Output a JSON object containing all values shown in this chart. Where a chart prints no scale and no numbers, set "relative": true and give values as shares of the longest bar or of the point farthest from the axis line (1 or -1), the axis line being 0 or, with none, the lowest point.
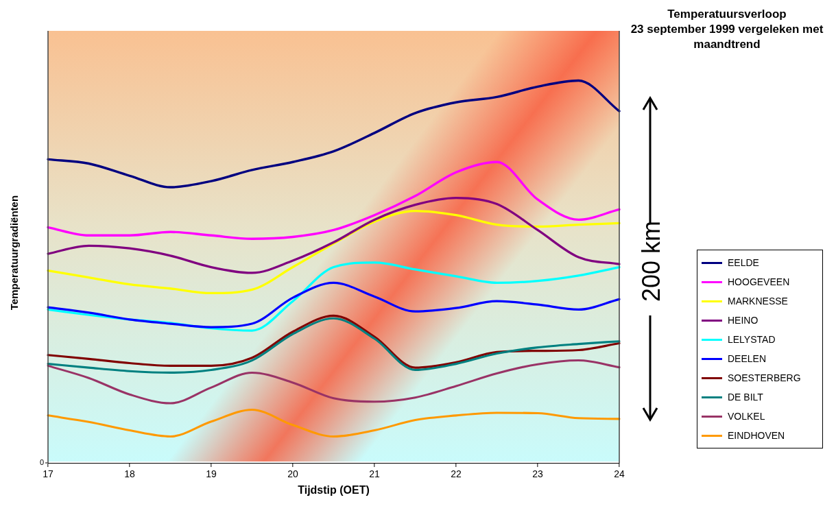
{
  "chart_data": {
    "type": "line",
    "title": "Temperatuursverloop",
    "subtitle": "23 september 1999 vergeleken met maandtrend",
    "xlabel": "Tijdstip (OET)",
    "ylabel": "Temperatuurgradiënten",
    "relative": true,
    "legend": "right",
    "marker": "none",
    "grid": false,
    "x": [
      17,
      17.5,
      18,
      18.5,
      19,
      19.5,
      20,
      20.5,
      21,
      21.5,
      22,
      22.5,
      23,
      23.5,
      24
    ],
    "xlim": [
      17,
      24
    ],
    "xticks": [
      17,
      18,
      19,
      20,
      21,
      22,
      23,
      24
    ],
    "annotations": [
      "200 km",
      "0"
    ],
    "series": [
      {
        "name": "EELDE",
        "color": "#000080",
        "values": [
          0.794,
          0.783,
          0.751,
          0.721,
          0.737,
          0.766,
          0.787,
          0.815,
          0.863,
          0.915,
          0.943,
          0.957,
          0.984,
          1,
          0.92
        ]
      },
      {
        "name": "HOOGEVEEN",
        "color": "#ff00ff",
        "values": [
          0.616,
          0.595,
          0.595,
          0.604,
          0.595,
          0.586,
          0.591,
          0.609,
          0.648,
          0.698,
          0.76,
          0.787,
          0.689,
          0.636,
          0.663
        ]
      },
      {
        "name": "MARKNESSE",
        "color": "#ffff00",
        "values": [
          0.503,
          0.485,
          0.467,
          0.456,
          0.444,
          0.453,
          0.512,
          0.574,
          0.631,
          0.659,
          0.648,
          0.623,
          0.618,
          0.623,
          0.627
        ]
      },
      {
        "name": "HEINO",
        "color": "#800080",
        "values": [
          0.547,
          0.568,
          0.561,
          0.542,
          0.512,
          0.497,
          0.529,
          0.577,
          0.636,
          0.675,
          0.693,
          0.677,
          0.609,
          0.538,
          0.52
        ]
      },
      {
        "name": "LELYSTAD",
        "color": "#00ffff",
        "values": [
          0.401,
          0.387,
          0.375,
          0.366,
          0.352,
          0.346,
          0.423,
          0.512,
          0.524,
          0.506,
          0.488,
          0.471,
          0.476,
          0.49,
          0.512
        ]
      },
      {
        "name": "DEELEN",
        "color": "#0000ff",
        "values": [
          0.407,
          0.393,
          0.375,
          0.364,
          0.355,
          0.364,
          0.432,
          0.471,
          0.435,
          0.396,
          0.405,
          0.423,
          0.414,
          0.401,
          0.428
        ]
      },
      {
        "name": "SOESTERBERG",
        "color": "#800000",
        "values": [
          0.282,
          0.272,
          0.261,
          0.254,
          0.254,
          0.275,
          0.343,
          0.385,
          0.33,
          0.249,
          0.263,
          0.29,
          0.293,
          0.295,
          0.313
        ]
      },
      {
        "name": "DE BILT",
        "color": "#008080",
        "values": [
          0.259,
          0.249,
          0.24,
          0.236,
          0.243,
          0.268,
          0.337,
          0.378,
          0.325,
          0.243,
          0.259,
          0.286,
          0.302,
          0.311,
          0.318
        ]
      },
      {
        "name": "VOLKEL",
        "color": "#993366",
        "values": [
          0.254,
          0.222,
          0.179,
          0.156,
          0.197,
          0.236,
          0.21,
          0.169,
          0.16,
          0.171,
          0.201,
          0.234,
          0.258,
          0.268,
          0.25
        ]
      },
      {
        "name": "EINDHOVEN",
        "color": "#ff9900",
        "values": [
          0.124,
          0.107,
          0.085,
          0.069,
          0.108,
          0.139,
          0.099,
          0.069,
          0.085,
          0.112,
          0.124,
          0.131,
          0.13,
          0.117,
          0.115
        ]
      }
    ]
  }
}
